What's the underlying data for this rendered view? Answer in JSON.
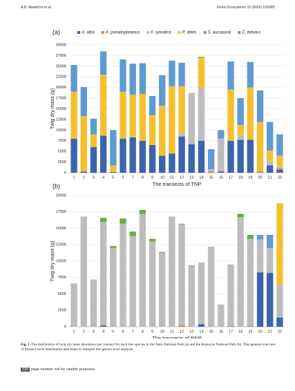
{
  "header": {
    "authors": "A.B. Madalcho et al.",
    "journal": "Forest Ecosystems 12 (2025) 100298"
  },
  "chart_data": [
    {
      "type": "stacked_bar",
      "panel": "(a)",
      "x_label": "The transects of TNP",
      "y_label": "Twig dry mass (g)",
      "categories": [
        "1",
        "2",
        "3",
        "4",
        "5",
        "6",
        "7",
        "8",
        "9",
        "10",
        "11",
        "12",
        "13",
        "14",
        "15",
        "16",
        "17",
        "18",
        "19",
        "20",
        "21",
        "22"
      ],
      "ylim": [
        0,
        30000
      ],
      "yticks": [
        0,
        2500,
        5000,
        7500,
        10000,
        12500,
        15000,
        17500,
        20000,
        22500,
        25000,
        27500,
        30000
      ],
      "grid": true,
      "legend": "top",
      "series": [
        {
          "name": "A. alba",
          "color": "#3b64ad",
          "values": [
            8000,
            300,
            6000,
            8700,
            200,
            8000,
            8300,
            7500,
            6500,
            4000,
            4500,
            8500,
            6700,
            7500,
            0,
            300,
            7500,
            7700,
            7700,
            0,
            1700,
            700
          ]
        },
        {
          "name": "A. pseudoplatanus",
          "color": "#e07b2c",
          "values": [
            0,
            0,
            0,
            0,
            0,
            0,
            0,
            0,
            0,
            0,
            0,
            0,
            0,
            0,
            300,
            0,
            0,
            0,
            0,
            300,
            0,
            300
          ]
        },
        {
          "name": "F. sylvatica",
          "color": "#bdbdbd",
          "values": [
            0,
            0,
            0,
            0,
            0,
            0,
            0,
            0,
            0,
            0,
            0,
            800,
            12000,
            12500,
            500,
            7700,
            0,
            1000,
            0,
            0,
            1000,
            500
          ]
        },
        {
          "name": "P. abies",
          "color": "#f5c02f",
          "values": [
            11000,
            13000,
            3000,
            14300,
            1500,
            11000,
            10000,
            11000,
            7000,
            11700,
            15800,
            11000,
            0,
            7000,
            0,
            0,
            12000,
            2500,
            12300,
            11600,
            2500,
            2500
          ]
        },
        {
          "name": "S. aucuparia",
          "color": "#5f9bd3",
          "values": [
            6300,
            6800,
            3700,
            5500,
            8300,
            7600,
            7300,
            7200,
            4500,
            7200,
            6000,
            5500,
            0,
            0,
            4700,
            2000,
            6600,
            6300,
            6000,
            7400,
            6700,
            5000
          ]
        },
        {
          "name": "C. betulus",
          "color": "#6aac4a",
          "values": [
            0,
            0,
            0,
            0,
            0,
            0,
            0,
            0,
            0,
            0,
            0,
            0,
            0,
            200,
            0,
            0,
            0,
            0,
            0,
            0,
            0,
            0
          ]
        }
      ]
    },
    {
      "type": "stacked_bar",
      "panel": "(b)",
      "x_label": "The transects of RNP",
      "y_label": "Twig dry mass (g)",
      "categories": [
        "1",
        "2",
        "3",
        "4",
        "5",
        "6",
        "7",
        "8",
        "9",
        "10",
        "11",
        "12",
        "13",
        "14",
        "15",
        "16",
        "17",
        "18",
        "19",
        "20",
        "21",
        "22"
      ],
      "ylim": [
        0,
        20000
      ],
      "yticks": [
        0,
        2500,
        5000,
        7500,
        10000,
        12500,
        15000,
        17500,
        20000
      ],
      "grid": true,
      "series": [
        {
          "color": "#3b64ad",
          "values": [
            0,
            0,
            0,
            200,
            0,
            0,
            0,
            0,
            0,
            0,
            0,
            0,
            0,
            400,
            0,
            0,
            0,
            0,
            0,
            8300,
            8200,
            1400
          ]
        },
        {
          "color": "#e07b2c",
          "values": [
            0,
            0,
            0,
            0,
            0,
            0,
            0,
            0,
            0,
            0,
            0,
            200,
            0,
            0,
            0,
            0,
            100,
            0,
            100,
            0,
            0,
            0
          ]
        },
        {
          "color": "#bdbdbd",
          "values": [
            6600,
            16800,
            7200,
            15800,
            12000,
            15700,
            13800,
            17200,
            13000,
            11300,
            16800,
            15400,
            9400,
            9400,
            12200,
            3400,
            9400,
            16700,
            13300,
            5000,
            3800,
            5000
          ]
        },
        {
          "color": "#f5c02f",
          "values": [
            0,
            0,
            0,
            0,
            0,
            0,
            0,
            0,
            0,
            0,
            0,
            0,
            0,
            0,
            0,
            0,
            0,
            0,
            0,
            0,
            0,
            12400
          ]
        },
        {
          "color": "#5f9bd3",
          "values": [
            0,
            0,
            0,
            0,
            0,
            0,
            0,
            0,
            0,
            0,
            0,
            0,
            0,
            0,
            0,
            0,
            0,
            0,
            0,
            700,
            2000,
            0
          ]
        },
        {
          "color": "#6aac4a",
          "values": [
            0,
            0,
            0,
            600,
            300,
            800,
            700,
            600,
            400,
            100,
            0,
            100,
            0,
            0,
            0,
            0,
            0,
            500,
            600,
            0,
            0,
            0
          ]
        }
      ]
    }
  ],
  "caption": {
    "label": "Fig. 1.",
    "text": "The distribution of twig dry mass abundance per transect for each tree species in the Tatra National Park (a) and the Roztocze National Park (b). This general overview of transect-level distribution data helps to interpret the species-level analysis."
  },
  "footer": {
    "page": "326",
    "note": "page number not for citation purposes"
  }
}
